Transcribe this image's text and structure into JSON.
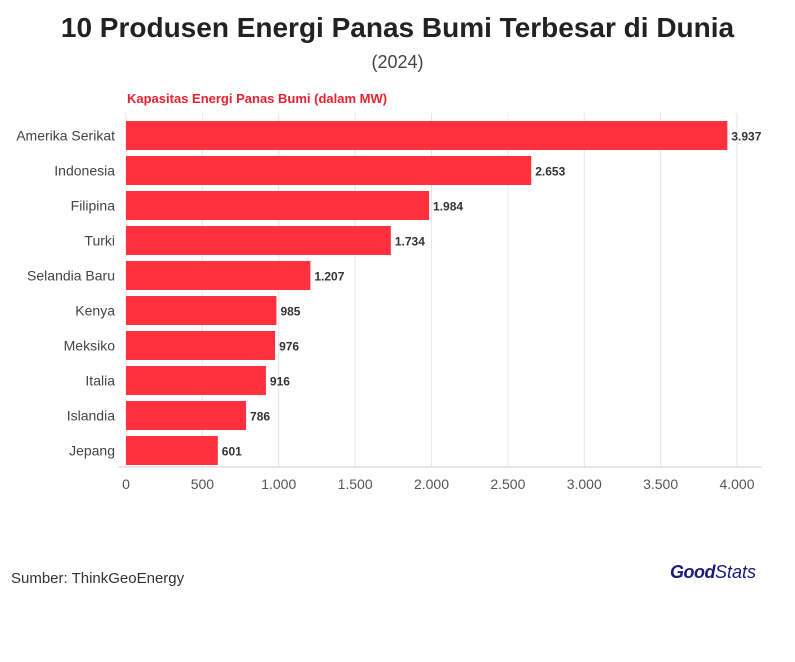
{
  "title": "10 Produsen Energi Panas Bumi Terbesar di Dunia",
  "subtitle": "(2024)",
  "chart_data": {
    "type": "bar",
    "orientation": "horizontal",
    "title": "10 Produsen Energi Panas Bumi Terbesar di Dunia",
    "subtitle": "(2024)",
    "series_label": "Kapasitas Energi Panas Bumi (dalam MW)",
    "categories": [
      "Amerika Serikat",
      "Indonesia",
      "Filipina",
      "Turki",
      "Selandia Baru",
      "Kenya",
      "Meksiko",
      "Italia",
      "Islandia",
      "Jepang"
    ],
    "values": [
      3937,
      2653,
      1984,
      1734,
      1207,
      985,
      976,
      916,
      786,
      601
    ],
    "value_labels": [
      "3.937",
      "2.653",
      "1.984",
      "1.734",
      "1.207",
      "985",
      "976",
      "916",
      "786",
      "601"
    ],
    "xlim": [
      0,
      4000
    ],
    "xticks": [
      0,
      500,
      1000,
      1500,
      2000,
      2500,
      3000,
      3500,
      4000
    ],
    "xtick_labels": [
      "0",
      "500",
      "1.000",
      "1.500",
      "2.000",
      "2.500",
      "3.000",
      "3.500",
      "4.000"
    ],
    "grid": true,
    "bar_color": "#ff313f"
  },
  "footer": {
    "source": "Sumber: ThinkGeoEnergy",
    "logo_good": "Good",
    "logo_stats": "Stats"
  }
}
